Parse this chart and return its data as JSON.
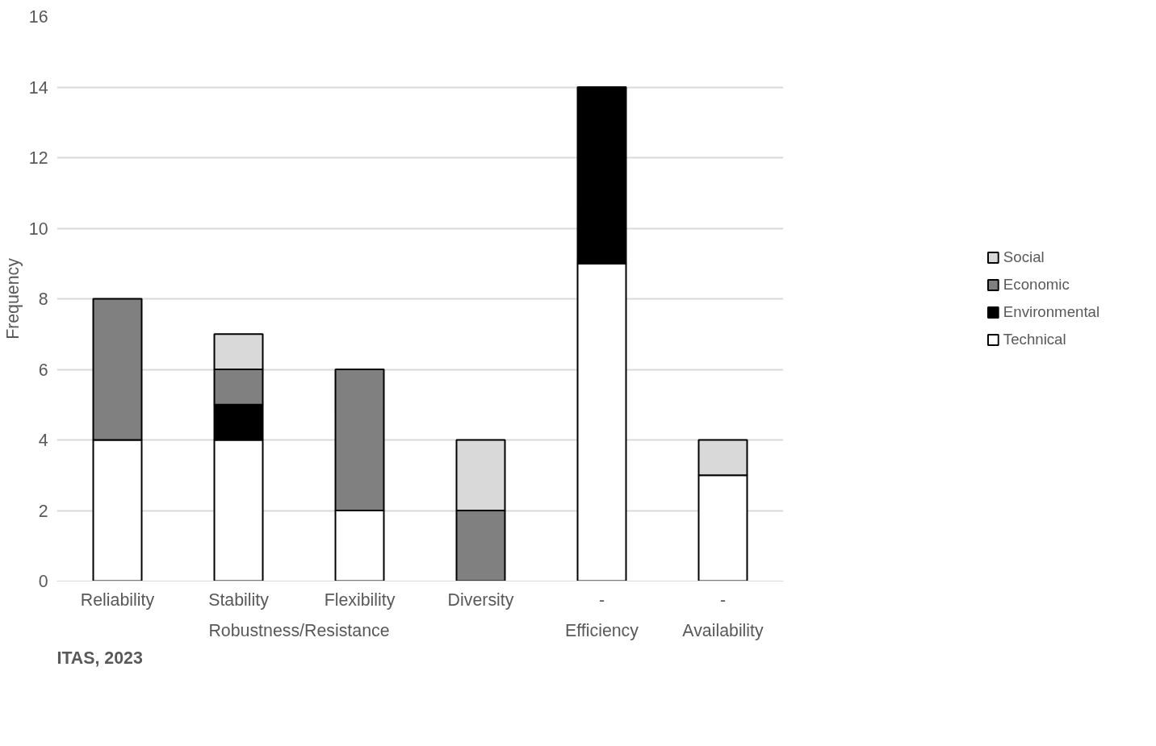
{
  "chart_data": {
    "type": "bar",
    "stacked": true,
    "ylabel": "Frequency",
    "categories": [
      "Reliability",
      "Stability",
      "Flexibility",
      "Diversity",
      "-",
      "-"
    ],
    "series": [
      {
        "name": "Technical",
        "color": "#ffffff",
        "values": [
          4,
          4,
          2,
          0,
          9,
          3
        ]
      },
      {
        "name": "Environmental",
        "color": "#000000",
        "values": [
          0,
          1,
          0,
          0,
          5,
          0
        ]
      },
      {
        "name": "Economic",
        "color": "#808080",
        "values": [
          4,
          1,
          4,
          2,
          0,
          0
        ]
      },
      {
        "name": "Social",
        "color": "#d9d9d9",
        "values": [
          0,
          1,
          0,
          2,
          0,
          1
        ]
      }
    ],
    "ylim": [
      0,
      16
    ],
    "yticks": [
      0,
      2,
      4,
      6,
      8,
      10,
      12,
      14,
      16
    ],
    "grid": "y",
    "legend": "right",
    "annotations": [
      "Robustness/Resistance",
      "Efficiency",
      "Availability",
      "ITAS, 2023"
    ]
  }
}
